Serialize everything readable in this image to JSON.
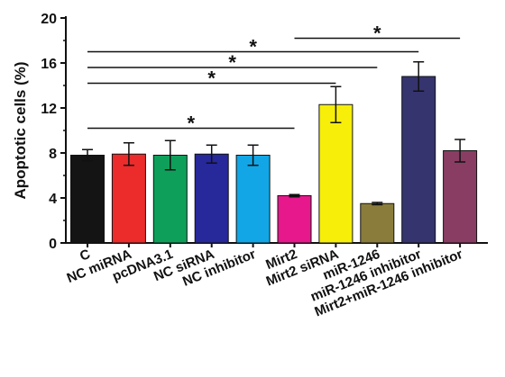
{
  "chart_data": {
    "type": "bar",
    "title": "",
    "xlabel": "",
    "ylabel": "Apoptotic cells (%)",
    "ylim": [
      0,
      20
    ],
    "yticks": [
      0,
      4,
      8,
      12,
      16,
      20
    ],
    "grid": false,
    "categories": [
      "C",
      "NC miRNA",
      "pcDNA3.1",
      "NC siRNA",
      "NC inhibitor",
      "Mirt2",
      "Mirt2 siRNA",
      "miR-1246",
      "miR-1246 inhibitor",
      "Mirt2+miR-1246 inhibitor"
    ],
    "values": [
      7.8,
      7.9,
      7.8,
      7.9,
      7.8,
      4.2,
      12.3,
      3.5,
      14.8,
      8.2
    ],
    "errors": [
      0.5,
      1.0,
      1.3,
      0.8,
      0.9,
      0.1,
      1.6,
      0.1,
      1.3,
      1.0
    ],
    "colors": [
      "#141414",
      "#ec2b2b",
      "#0ea05a",
      "#27289a",
      "#12a6e6",
      "#e6188c",
      "#f7ee0a",
      "#8a7d3c",
      "#35346e",
      "#8a3d63"
    ],
    "annotations": [
      {
        "text": "*",
        "from": "C",
        "to": "Mirt2",
        "y": 10.2
      },
      {
        "text": "*",
        "from": "C",
        "to": "Mirt2 siRNA",
        "y": 14.2
      },
      {
        "text": "*",
        "from": "C",
        "to": "miR-1246",
        "y": 15.6
      },
      {
        "text": "*",
        "from": "C",
        "to": "miR-1246 inhibitor",
        "y": 17.0
      },
      {
        "text": "*",
        "from": "Mirt2",
        "to": "Mirt2+miR-1246 inhibitor",
        "y": 18.2
      }
    ]
  }
}
